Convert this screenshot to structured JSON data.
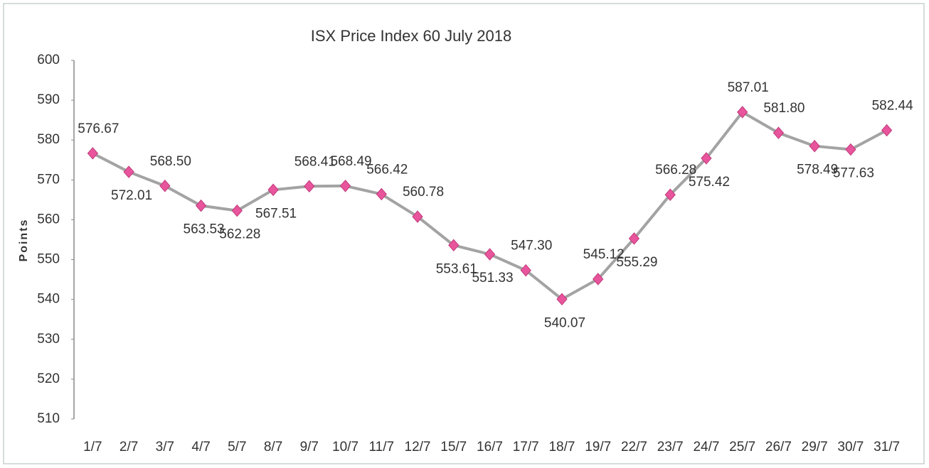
{
  "chart_data": {
    "type": "line",
    "title": "ISX Price Index 60  July 2018",
    "y_label": "Points",
    "categories": [
      "1/7",
      "2/7",
      "3/7",
      "4/7",
      "5/7",
      "8/7",
      "9/7",
      "10/7",
      "11/7",
      "12/7",
      "15/7",
      "16/7",
      "17/7",
      "18/7",
      "19/7",
      "22/7",
      "23/7",
      "24/7",
      "25/7",
      "26/7",
      "29/7",
      "30/7",
      "31/7"
    ],
    "series": [
      {
        "name": "ISX Price Index 60",
        "color": "#a3a3a3",
        "marker_color": "#e8559c",
        "values": [
          576.67,
          572.01,
          568.5,
          563.53,
          562.28,
          567.51,
          568.41,
          568.49,
          566.42,
          560.78,
          553.61,
          551.33,
          547.3,
          540.07,
          545.12,
          555.29,
          566.28,
          575.42,
          587.01,
          581.8,
          578.49,
          577.63,
          582.44
        ],
        "value_labels": [
          "576.67",
          "572.01",
          "568.50",
          "563.53",
          "562.28",
          "567.51",
          "568.41",
          "568.49",
          "566.42",
          "560.78",
          "553.61",
          "551.33",
          "547.30",
          "540.07",
          "545.12",
          "555.29",
          "566.28",
          "575.42",
          "587.01",
          "581.80",
          "578.49",
          "577.63",
          "582.44"
        ]
      }
    ],
    "ylim": [
      510,
      600
    ],
    "yticks": [
      510,
      520,
      530,
      540,
      550,
      560,
      570,
      580,
      590,
      600
    ],
    "grid": false
  }
}
